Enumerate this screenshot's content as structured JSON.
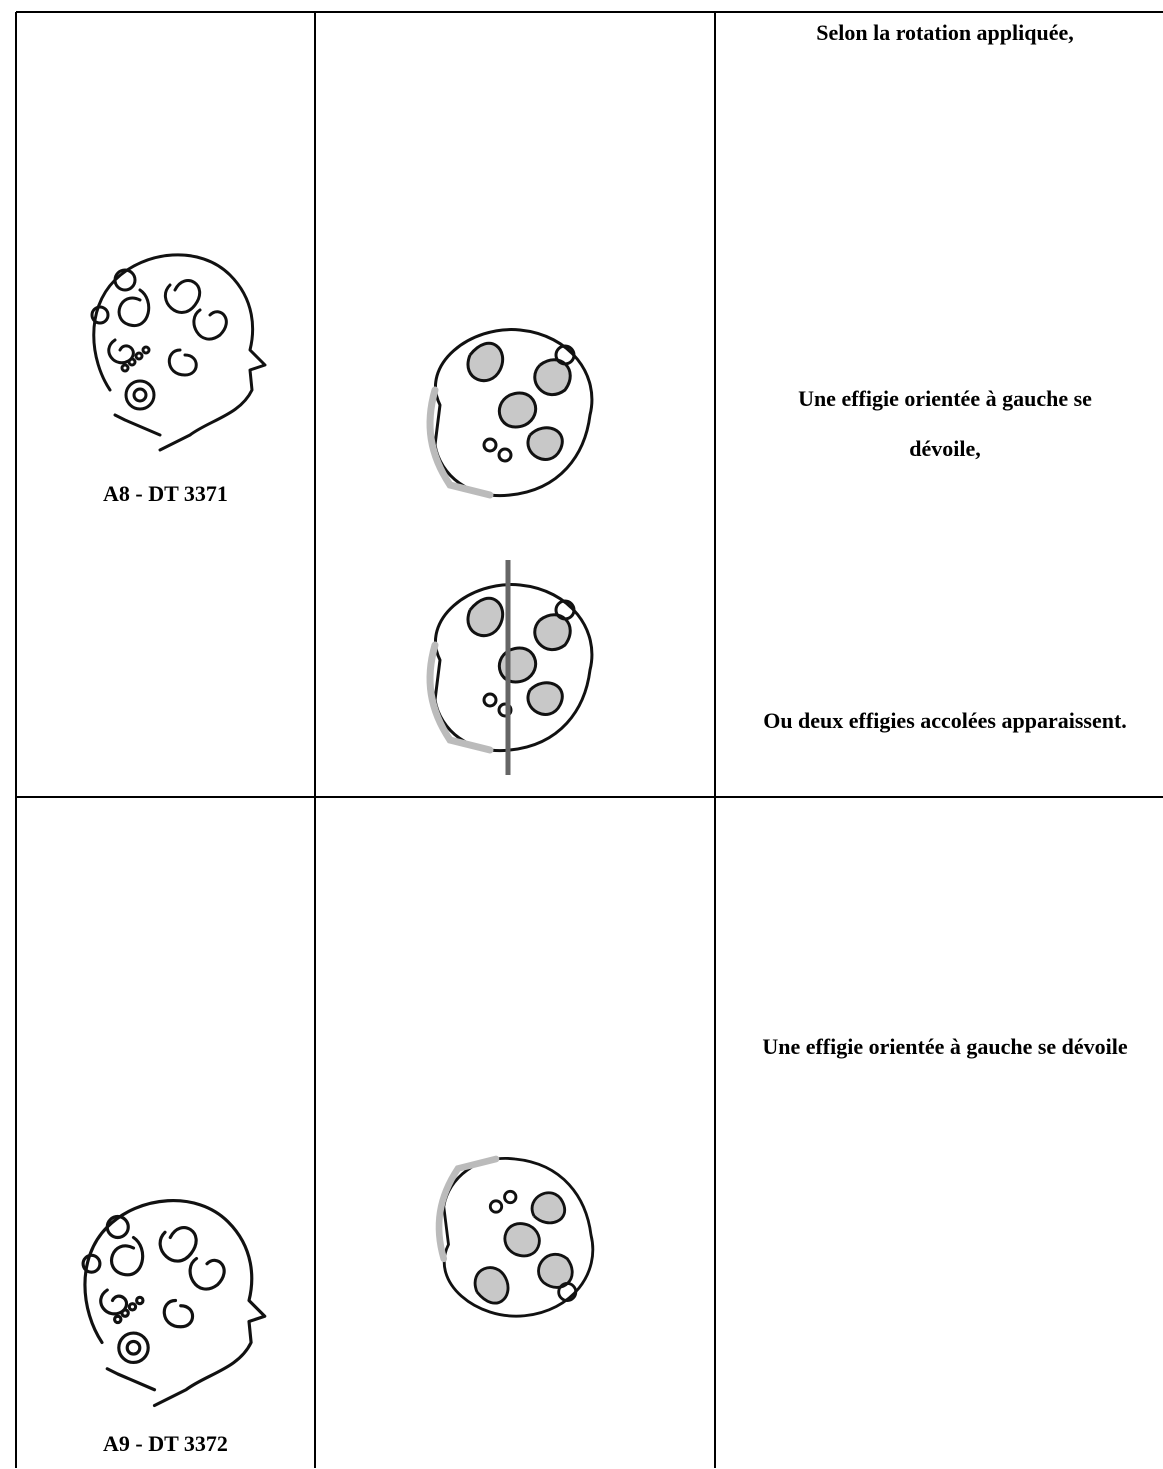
{
  "rows": [
    {
      "caption": "A8 - DT 3371",
      "notes": [
        "Selon la rotation appliquée,",
        "Une effigie orientée à gauche se dévoile,",
        "Ou deux effigies accolées apparaissent."
      ]
    },
    {
      "caption": "A9 - DT 3372",
      "notes": [
        "Une effigie orientée à gauche se dévoile"
      ]
    }
  ]
}
